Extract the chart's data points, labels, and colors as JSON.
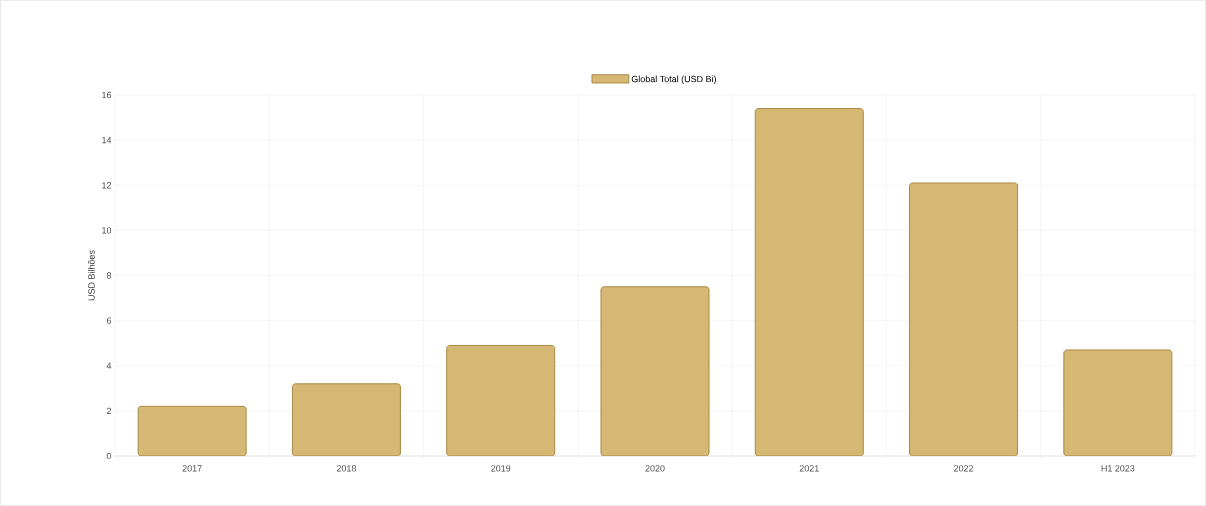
{
  "chart_data": {
    "type": "bar",
    "ylabel": "USD Bilhões",
    "categories": [
      "2017",
      "2018",
      "2019",
      "2020",
      "2021",
      "2022",
      "H1 2023"
    ],
    "series": [
      {
        "name": "Global Total (USD Bi)",
        "color": "#d4b873",
        "values": [
          2.2,
          3.2,
          4.9,
          7.5,
          15.4,
          12.1,
          4.7
        ]
      }
    ],
    "ylim": [
      0,
      16
    ],
    "yticks": [
      0,
      2,
      4,
      6,
      8,
      10,
      12,
      14,
      16
    ],
    "grid": true,
    "legend": "top"
  }
}
